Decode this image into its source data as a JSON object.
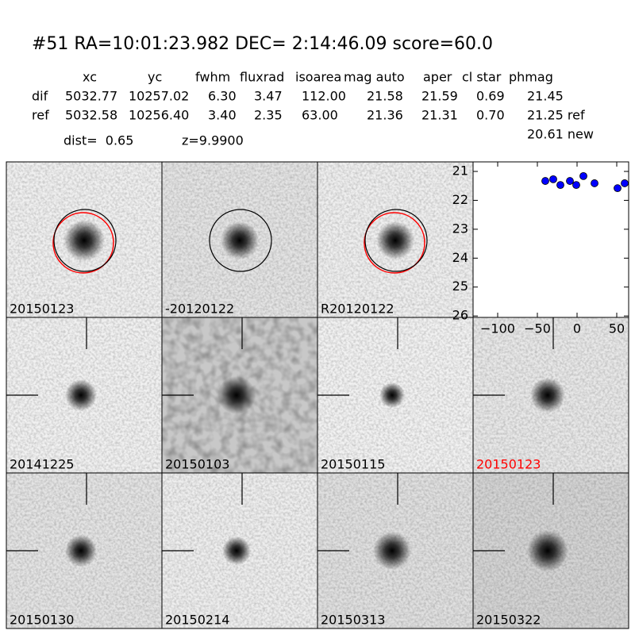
{
  "header": {
    "title": "#51   RA=10:01:23.982 DEC= 2:14:46.09      score=60.0"
  },
  "table": {
    "columns": [
      "xc",
      "yc",
      "fwhm",
      "fluxrad",
      "isoarea",
      "mag auto",
      "aper",
      "cl star",
      "phmag"
    ],
    "rows": [
      [
        "dif",
        "5032.77",
        "10257.02",
        "6.30",
        "3.47",
        "112.00",
        "21.58",
        "21.59",
        "0.69",
        "21.45"
      ],
      [
        "ref",
        "5032.58",
        "10256.40",
        "3.40",
        "2.35",
        "63.00",
        "21.36",
        "21.31",
        "0.70",
        "21.25 ref"
      ]
    ],
    "extra": "20.61 new",
    "dist": "dist=  0.65",
    "z": "z=9.9900"
  },
  "panels": [
    {
      "label": "20150123"
    },
    {
      "label": "-20120122"
    },
    {
      "label": "R20120122"
    },
    {
      "label": "20141225"
    },
    {
      "label": "20150103"
    },
    {
      "label": "20150115"
    },
    {
      "label": "20150123",
      "color": "#ff0000"
    },
    {
      "label": "20150130"
    },
    {
      "label": "20150214"
    },
    {
      "label": "20150313"
    },
    {
      "label": "20150322"
    }
  ],
  "chart_data": {
    "type": "scatter",
    "x": [
      -40,
      -30,
      -21,
      -9,
      -1,
      8,
      22,
      51,
      60
    ],
    "series": [
      {
        "color": "#0000ff",
        "values": [
          21.33,
          21.27,
          21.47,
          21.33,
          21.47,
          21.16,
          21.41,
          21.58,
          21.41
        ]
      }
    ],
    "xlim": [
      -131,
      65
    ],
    "ylim": [
      26.05,
      20.67
    ],
    "xticks": [
      {
        "value": -100,
        "label": "−100"
      },
      {
        "value": -50,
        "label": "−50"
      },
      0,
      50
    ],
    "yticks": [
      21,
      22,
      23,
      24,
      25,
      26
    ]
  }
}
